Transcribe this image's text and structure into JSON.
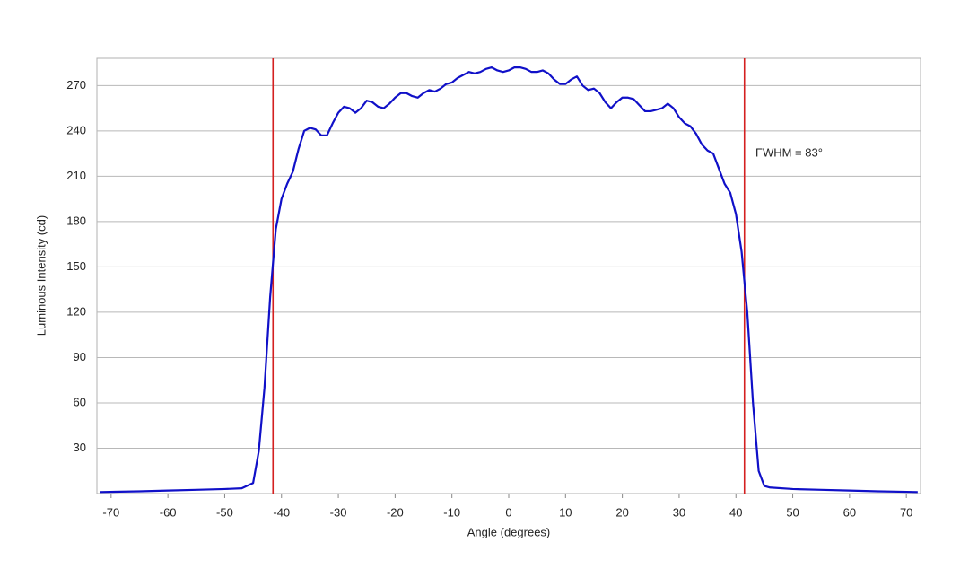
{
  "chart_data": {
    "type": "line",
    "xlabel": "Angle (degrees)",
    "ylabel": "Luminous Intensity (cd)",
    "annotation": "FWHM = 83°",
    "x": [
      -72,
      -65,
      -60,
      -55,
      -50,
      -47,
      -45,
      -44,
      -43,
      -42,
      -41,
      -40,
      -39,
      -38,
      -37,
      -36,
      -35,
      -34,
      -33,
      -32,
      -31,
      -30,
      -29,
      -28,
      -27,
      -26,
      -25,
      -24,
      -23,
      -22,
      -21,
      -20,
      -19,
      -18,
      -17,
      -16,
      -15,
      -14,
      -13,
      -12,
      -11,
      -10,
      -9,
      -8,
      -7,
      -6,
      -5,
      -4,
      -3,
      -2,
      -1,
      0,
      1,
      2,
      3,
      4,
      5,
      6,
      7,
      8,
      9,
      10,
      11,
      12,
      13,
      14,
      15,
      16,
      17,
      18,
      19,
      20,
      21,
      22,
      23,
      24,
      25,
      26,
      27,
      28,
      29,
      30,
      31,
      32,
      33,
      34,
      35,
      36,
      37,
      38,
      39,
      40,
      41,
      42,
      43,
      44,
      45,
      46,
      50,
      55,
      60,
      65,
      72
    ],
    "series": [
      {
        "name": "Luminous Intensity",
        "color": "#1010c8",
        "values": [
          1,
          1.5,
          2,
          2.5,
          3,
          3.5,
          7,
          28,
          70,
          130,
          175,
          195,
          205,
          213,
          228,
          240,
          242,
          241,
          237,
          237,
          245,
          252,
          256,
          255,
          252,
          255,
          260,
          259,
          256,
          255,
          258,
          262,
          265,
          265,
          263,
          262,
          265,
          267,
          266,
          268,
          271,
          272,
          275,
          277,
          279,
          278,
          279,
          281,
          282,
          280,
          279,
          280,
          282,
          282,
          281,
          279,
          279,
          280,
          278,
          274,
          271,
          271,
          274,
          276,
          270,
          267,
          268,
          265,
          259,
          255,
          259,
          262,
          262,
          261,
          257,
          253,
          253,
          254,
          255,
          258,
          255,
          249,
          245,
          243,
          238,
          231,
          227,
          225,
          215,
          205,
          199,
          185,
          160,
          120,
          60,
          15,
          5,
          4,
          3,
          2.5,
          2,
          1.5,
          1
        ]
      }
    ],
    "vlines": {
      "color": "#d42020",
      "values": [
        -41.5,
        41.5
      ]
    },
    "xlim": [
      -72.5,
      72.5
    ],
    "xticks": [
      -70,
      -60,
      -50,
      -40,
      -30,
      -20,
      -10,
      0,
      10,
      20,
      30,
      40,
      50,
      60,
      70
    ],
    "ylim": [
      0,
      288
    ],
    "yticks": [
      30,
      60,
      90,
      120,
      150,
      180,
      210,
      240,
      270
    ],
    "grid": true
  }
}
